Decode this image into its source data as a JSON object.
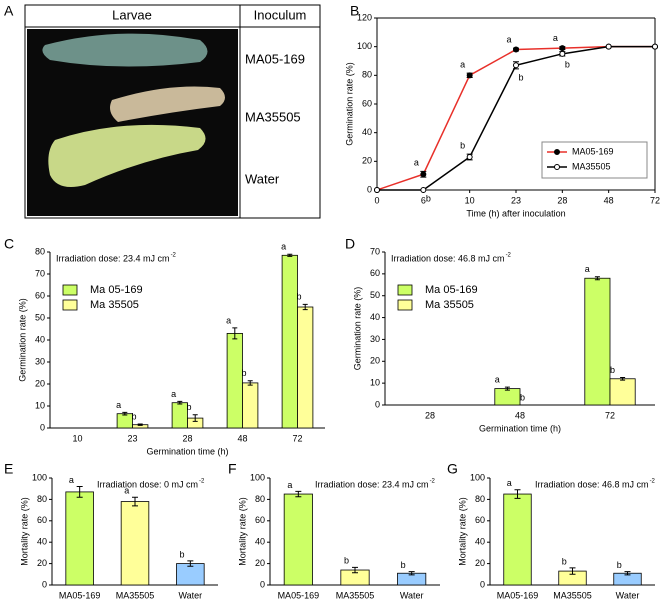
{
  "panel_labels": [
    "A",
    "B",
    "C",
    "D",
    "E",
    "F",
    "G"
  ],
  "larvae_table": {
    "headers": [
      "Larvae",
      "Inoculum"
    ],
    "rows": [
      "MA05-169",
      "MA35505",
      "Water"
    ]
  },
  "chart_data": [
    {
      "type": "line",
      "categories": [
        "0",
        "6",
        "10",
        "23",
        "28",
        "48",
        "72"
      ],
      "xlabel": "Time (h) after inoculation",
      "ylabel": "Germination rate (%)",
      "ylim": [
        0,
        120
      ],
      "yticks": [
        0,
        20,
        40,
        60,
        80,
        100,
        120
      ],
      "legend": "lower right",
      "series": [
        {
          "name": "MA05-169",
          "color": "#e8302a",
          "marker": "filled",
          "values": [
            0,
            11,
            80,
            98,
            99,
            100,
            100
          ],
          "errors": [
            0,
            2,
            1.5,
            1,
            1,
            0,
            0
          ],
          "annotations": [
            null,
            "a",
            "a",
            "a",
            "a",
            null,
            null
          ]
        },
        {
          "name": "MA35505",
          "color": "#000000",
          "marker": "open",
          "values": [
            0,
            0,
            23,
            87,
            95,
            100,
            100
          ],
          "errors": [
            0,
            0,
            2,
            2.5,
            1.5,
            0,
            0
          ],
          "annotations": [
            null,
            "b",
            "b",
            "b",
            "b",
            null,
            null
          ]
        }
      ]
    },
    {
      "type": "bar",
      "categories": [
        "10",
        "23",
        "28",
        "48",
        "72"
      ],
      "xlabel": "Germination time (h)",
      "ylabel": "Germination rate (%)",
      "annotation": "Irradiation dose: 23.4 mJ cm",
      "annotation_sup": "-2",
      "ylim": [
        0,
        80
      ],
      "yticks": [
        0,
        10,
        20,
        30,
        40,
        50,
        60,
        70,
        80
      ],
      "legend": "upper left",
      "series": [
        {
          "name": "Ma 05-169",
          "color": "#ccff66",
          "values": [
            0,
            6.5,
            11.5,
            43,
            78.5
          ],
          "errors": [
            0,
            0.6,
            0.6,
            2.5,
            0.5
          ],
          "annotations": [
            null,
            "a",
            "a",
            "a",
            "a"
          ]
        },
        {
          "name": "Ma 35505",
          "color": "#ffff99",
          "values": [
            0,
            1.5,
            4.5,
            20.5,
            55
          ],
          "errors": [
            0,
            0.3,
            1.5,
            1,
            1.2
          ],
          "annotations": [
            null,
            "b",
            "b",
            "b",
            "b"
          ]
        }
      ]
    },
    {
      "type": "bar",
      "categories": [
        "28",
        "48",
        "72"
      ],
      "xlabel": "Germination time (h)",
      "ylabel": "Germination rate (%)",
      "annotation": "Irradiation dose: 46.8 mJ cm",
      "annotation_sup": "-2",
      "ylim": [
        0,
        70
      ],
      "yticks": [
        0,
        10,
        20,
        30,
        40,
        50,
        60,
        70
      ],
      "legend": "upper left",
      "series": [
        {
          "name": "Ma 05-169",
          "color": "#ccff66",
          "values": [
            0,
            7.5,
            58
          ],
          "errors": [
            0,
            0.7,
            0.7
          ],
          "annotations": [
            null,
            "a",
            "a"
          ]
        },
        {
          "name": "Ma 35505",
          "color": "#ffff99",
          "values": [
            0,
            0,
            12
          ],
          "errors": [
            0,
            0,
            0.6
          ],
          "annotations": [
            null,
            "b",
            "b"
          ]
        }
      ]
    },
    {
      "type": "colorbar",
      "categories": [
        "MA05-169",
        "MA35505",
        "Water"
      ],
      "ylabel": "Mortality rate (%)",
      "annotation": "Irradiation dose: 0 mJ cm",
      "annotation_sup": "-2",
      "ylim": [
        0,
        100
      ],
      "yticks": [
        0,
        20,
        40,
        60,
        80,
        100
      ],
      "colors": [
        "#ccff66",
        "#ffff99",
        "#99ccff"
      ],
      "values": [
        87,
        78,
        20
      ],
      "errors": [
        5,
        4,
        2.5
      ],
      "annotations": [
        "a",
        "a",
        "b"
      ]
    },
    {
      "type": "colorbar",
      "categories": [
        "MA05-169",
        "MA35505",
        "Water"
      ],
      "ylabel": "Mortality rate (%)",
      "annotation": "Irradiation dose: 23.4 mJ cm",
      "annotation_sup": "-2",
      "ylim": [
        0,
        100
      ],
      "yticks": [
        0,
        20,
        40,
        60,
        80,
        100
      ],
      "colors": [
        "#ccff66",
        "#ffff99",
        "#99ccff"
      ],
      "values": [
        85,
        14,
        11
      ],
      "errors": [
        2.5,
        2.5,
        1.5
      ],
      "annotations": [
        "a",
        "b",
        "b"
      ]
    },
    {
      "type": "colorbar",
      "categories": [
        "MA05-169",
        "MA35505",
        "Water"
      ],
      "ylabel": "Mortality rate (%)",
      "annotation": "Irradiation dose: 46.8 mJ cm",
      "annotation_sup": "-2",
      "ylim": [
        0,
        100
      ],
      "yticks": [
        0,
        20,
        40,
        60,
        80,
        100
      ],
      "colors": [
        "#ccff66",
        "#ffff99",
        "#99ccff"
      ],
      "values": [
        85,
        13,
        11
      ],
      "errors": [
        4,
        3,
        1.5
      ],
      "annotations": [
        "a",
        "b",
        "b"
      ]
    }
  ]
}
